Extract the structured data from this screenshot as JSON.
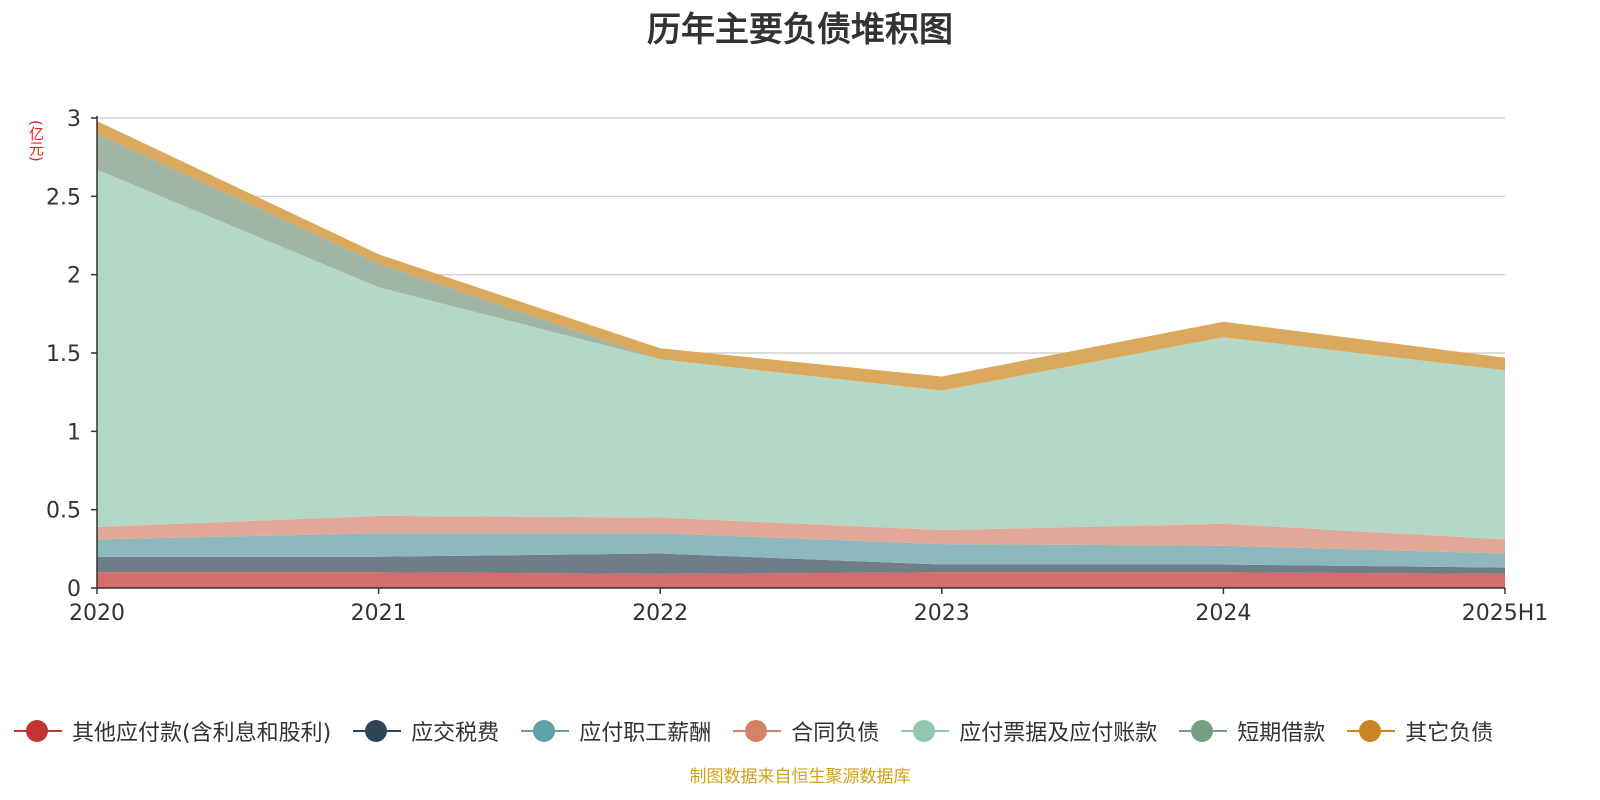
{
  "title": "历年主要负债堆积图",
  "unit": "(亿元)",
  "source": "制图数据来自恒生聚源数据库",
  "chart_data": {
    "type": "area",
    "stacked": true,
    "categories": [
      "2020",
      "2021",
      "2022",
      "2023",
      "2024",
      "2025H1"
    ],
    "ylim": [
      0,
      3
    ],
    "yticks": [
      0,
      0.5,
      1,
      1.5,
      2,
      2.5,
      3
    ],
    "grid": true,
    "legend_position": "bottom",
    "series": [
      {
        "name": "其他应付款(含利息和股利)",
        "color": "#c23531",
        "fill": "#d46c6a",
        "values": [
          0.1,
          0.1,
          0.09,
          0.1,
          0.1,
          0.09
        ]
      },
      {
        "name": "应交税费",
        "color": "#2f4554",
        "fill": "#6e7d87",
        "values": [
          0.1,
          0.1,
          0.13,
          0.05,
          0.05,
          0.04
        ]
      },
      {
        "name": "应付职工薪酬",
        "color": "#61a0a8",
        "fill": "#8db9be",
        "values": [
          0.11,
          0.15,
          0.13,
          0.13,
          0.12,
          0.09
        ]
      },
      {
        "name": "合同负债",
        "color": "#d48265",
        "fill": "#e2a796",
        "values": [
          0.08,
          0.11,
          0.1,
          0.09,
          0.14,
          0.09
        ]
      },
      {
        "name": "应付票据及应付账款",
        "color": "#91c7ae",
        "fill": "#b2d7c6",
        "values": [
          2.28,
          1.46,
          1.01,
          0.89,
          1.19,
          1.08
        ]
      },
      {
        "name": "短期借款",
        "color": "#749f83",
        "fill": "#a1b5a5",
        "values": [
          0.23,
          0.15,
          0.0,
          0.0,
          0.0,
          0.0
        ]
      },
      {
        "name": "其它负债",
        "color": "#ca8622",
        "fill": "#daa95e",
        "values": [
          0.08,
          0.06,
          0.07,
          0.09,
          0.1,
          0.08
        ]
      }
    ]
  }
}
